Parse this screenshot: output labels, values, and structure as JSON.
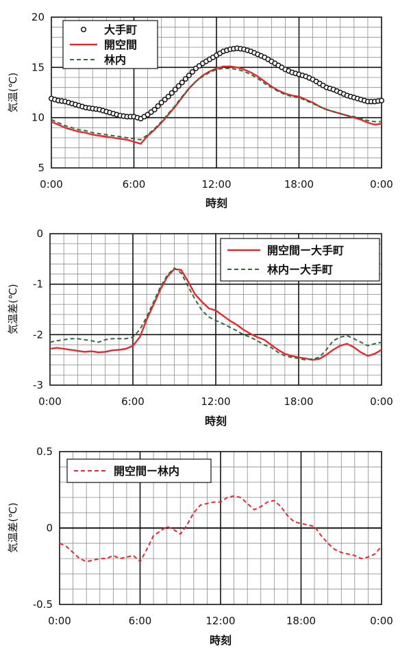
{
  "chart_data": [
    {
      "type": "line",
      "xlabel": "時刻",
      "ylabel": "気温(℃)",
      "xlim": [
        0,
        24
      ],
      "ylim": [
        5,
        20
      ],
      "x_ticks": [
        "0:00",
        "6:00",
        "12:00",
        "18:00",
        "0:00"
      ],
      "y_ticks": [
        "5",
        "10",
        "15",
        "20"
      ],
      "grid": true,
      "legend_position": "top-left",
      "series": [
        {
          "name": "大手町",
          "style": "circle-markers",
          "color": "#111111",
          "x": [
            0,
            0.5,
            1,
            1.5,
            2,
            2.5,
            3,
            3.5,
            4,
            4.5,
            5,
            5.5,
            6,
            6.5,
            7,
            7.5,
            8,
            8.5,
            9,
            9.5,
            10,
            10.5,
            11,
            11.5,
            12,
            12.5,
            13,
            13.5,
            14,
            14.5,
            15,
            15.5,
            16,
            16.5,
            17,
            17.5,
            18,
            18.5,
            19,
            19.5,
            20,
            20.5,
            21,
            21.5,
            22,
            22.5,
            23,
            23.5,
            24
          ],
          "y": [
            11.9,
            11.7,
            11.6,
            11.4,
            11.2,
            11,
            10.9,
            10.8,
            10.6,
            10.4,
            10.2,
            10.1,
            10.1,
            9.9,
            10.3,
            10.8,
            11.5,
            12.1,
            12.8,
            13.5,
            14.2,
            14.9,
            15.4,
            15.8,
            16.2,
            16.6,
            16.8,
            16.9,
            16.8,
            16.6,
            16.3,
            16,
            15.6,
            15.2,
            14.8,
            14.5,
            14.3,
            14.1,
            13.8,
            13.4,
            13,
            12.8,
            12.5,
            12.2,
            12,
            11.8,
            11.6,
            11.6,
            11.7
          ]
        },
        {
          "name": "開空間",
          "style": "solid",
          "color": "#e8262b",
          "x": [
            0,
            0.5,
            1,
            1.5,
            2,
            2.5,
            3,
            3.5,
            4,
            4.5,
            5,
            5.5,
            6,
            6.5,
            7,
            7.5,
            8,
            8.5,
            9,
            9.5,
            10,
            10.5,
            11,
            11.5,
            12,
            12.5,
            13,
            13.5,
            14,
            14.5,
            15,
            15.5,
            16,
            16.5,
            17,
            17.5,
            18,
            18.5,
            19,
            19.5,
            20,
            20.5,
            21,
            21.5,
            22,
            22.5,
            23,
            23.5,
            24
          ],
          "y": [
            9.6,
            9.3,
            9,
            8.8,
            8.6,
            8.5,
            8.3,
            8.2,
            8.1,
            8,
            7.9,
            7.8,
            7.6,
            7.4,
            8.2,
            8.8,
            9.5,
            10.3,
            11.1,
            12,
            12.9,
            13.6,
            14.2,
            14.6,
            14.9,
            15.1,
            15.1,
            15,
            14.8,
            14.5,
            14.1,
            13.6,
            13.1,
            12.7,
            12.4,
            12.2,
            12.1,
            11.8,
            11.5,
            11.1,
            10.8,
            10.6,
            10.4,
            10.2,
            10,
            9.8,
            9.5,
            9.3,
            9.4
          ]
        },
        {
          "name": "林内",
          "style": "dashed",
          "color": "#2e6b3c",
          "x": [
            0,
            0.5,
            1,
            1.5,
            2,
            2.5,
            3,
            3.5,
            4,
            4.5,
            5,
            5.5,
            6,
            6.5,
            7,
            7.5,
            8,
            8.5,
            9,
            9.5,
            10,
            10.5,
            11,
            11.5,
            12,
            12.5,
            13,
            13.5,
            14,
            14.5,
            15,
            15.5,
            16,
            16.5,
            17,
            17.5,
            18,
            18.5,
            19,
            19.5,
            20,
            20.5,
            21,
            21.5,
            22,
            22.5,
            23,
            23.5,
            24
          ],
          "y": [
            9.8,
            9.5,
            9.2,
            9,
            8.8,
            8.7,
            8.5,
            8.4,
            8.3,
            8.2,
            8.1,
            8,
            7.9,
            7.8,
            8.3,
            8.9,
            9.6,
            10.4,
            11.2,
            12.1,
            12.9,
            13.6,
            14.1,
            14.5,
            14.8,
            14.9,
            14.9,
            14.8,
            14.6,
            14.3,
            13.9,
            13.4,
            13,
            12.6,
            12.3,
            12.1,
            12,
            11.7,
            11.4,
            11.1,
            10.8,
            10.6,
            10.4,
            10.2,
            10.1,
            9.9,
            9.7,
            9.6,
            9.6
          ]
        }
      ]
    },
    {
      "type": "line",
      "xlabel": "時刻",
      "ylabel": "気温差(℃)",
      "xlim": [
        0,
        24
      ],
      "ylim": [
        -3,
        0
      ],
      "x_ticks": [
        "0:00",
        "6:00",
        "12:00",
        "18:00",
        "0:00"
      ],
      "y_ticks": [
        "-3",
        "-2",
        "-1",
        "0"
      ],
      "grid": true,
      "legend_position": "top-right",
      "series": [
        {
          "name": "開空間ー大手町",
          "style": "solid",
          "color": "#e8262b",
          "x": [
            0,
            0.5,
            1,
            1.5,
            2,
            2.5,
            3,
            3.5,
            4,
            4.5,
            5,
            5.5,
            6,
            6.5,
            7,
            7.5,
            8,
            8.5,
            9,
            9.5,
            10,
            10.5,
            11,
            11.5,
            12,
            12.5,
            13,
            13.5,
            14,
            14.5,
            15,
            15.5,
            16,
            16.5,
            17,
            17.5,
            18,
            18.5,
            19,
            19.5,
            20,
            20.5,
            21,
            21.5,
            22,
            22.5,
            23,
            23.5,
            24
          ],
          "y": [
            -2.28,
            -2.26,
            -2.28,
            -2.3,
            -2.32,
            -2.34,
            -2.33,
            -2.35,
            -2.34,
            -2.31,
            -2.3,
            -2.28,
            -2.22,
            -2.05,
            -1.7,
            -1.4,
            -1.1,
            -0.85,
            -0.7,
            -0.72,
            -0.95,
            -1.2,
            -1.35,
            -1.48,
            -1.52,
            -1.62,
            -1.72,
            -1.8,
            -1.9,
            -1.98,
            -2.05,
            -2.1,
            -2.2,
            -2.3,
            -2.38,
            -2.42,
            -2.45,
            -2.47,
            -2.5,
            -2.48,
            -2.4,
            -2.3,
            -2.22,
            -2.18,
            -2.25,
            -2.35,
            -2.42,
            -2.38,
            -2.3
          ]
        },
        {
          "name": "林内ー大手町",
          "style": "dashed",
          "color": "#2e6b3c",
          "x": [
            0,
            0.5,
            1,
            1.5,
            2,
            2.5,
            3,
            3.5,
            4,
            4.5,
            5,
            5.5,
            6,
            6.5,
            7,
            7.5,
            8,
            8.5,
            9,
            9.5,
            10,
            10.5,
            11,
            11.5,
            12,
            12.5,
            13,
            13.5,
            14,
            14.5,
            15,
            15.5,
            16,
            16.5,
            17,
            17.5,
            18,
            18.5,
            19,
            19.5,
            20,
            20.5,
            21,
            21.5,
            22,
            22.5,
            23,
            23.5,
            24
          ],
          "y": [
            -2.15,
            -2.12,
            -2.1,
            -2.08,
            -2.08,
            -2.1,
            -2.12,
            -2.15,
            -2.1,
            -2.08,
            -2.08,
            -2.08,
            -2.05,
            -1.9,
            -1.65,
            -1.35,
            -1.05,
            -0.82,
            -0.68,
            -0.78,
            -1.05,
            -1.3,
            -1.52,
            -1.65,
            -1.72,
            -1.78,
            -1.85,
            -1.92,
            -2,
            -2.05,
            -2.12,
            -2.2,
            -2.25,
            -2.35,
            -2.42,
            -2.45,
            -2.47,
            -2.5,
            -2.48,
            -2.45,
            -2.3,
            -2.12,
            -2.05,
            -2.02,
            -2.08,
            -2.15,
            -2.22,
            -2.18,
            -2.15
          ]
        }
      ]
    },
    {
      "type": "line",
      "xlabel": "時刻",
      "ylabel": "気温差(℃)",
      "xlim": [
        0,
        24
      ],
      "ylim": [
        -0.5,
        0.5
      ],
      "x_ticks": [
        "0:00",
        "6:00",
        "12:00",
        "18:00",
        "0:00"
      ],
      "y_ticks": [
        "-0.5",
        "0",
        "0.5"
      ],
      "grid": true,
      "legend_position": "top-left",
      "series": [
        {
          "name": "開空間ー林内",
          "style": "dashed",
          "color": "#e8262b",
          "x": [
            0,
            0.5,
            1,
            1.5,
            2,
            2.5,
            3,
            3.5,
            4,
            4.5,
            5,
            5.5,
            6,
            6.5,
            7,
            7.5,
            8,
            8.5,
            9,
            9.5,
            10,
            10.5,
            11,
            11.5,
            12,
            12.5,
            13,
            13.5,
            14,
            14.5,
            15,
            15.5,
            16,
            16.5,
            17,
            17.5,
            18,
            18.5,
            19,
            19.5,
            20,
            20.5,
            21,
            21.5,
            22,
            22.5,
            23,
            23.5,
            24
          ],
          "y": [
            -0.1,
            -0.12,
            -0.16,
            -0.2,
            -0.22,
            -0.21,
            -0.2,
            -0.2,
            -0.18,
            -0.2,
            -0.19,
            -0.18,
            -0.22,
            -0.14,
            -0.05,
            -0.02,
            0.01,
            -0.01,
            -0.04,
            0.02,
            0.1,
            0.15,
            0.16,
            0.17,
            0.17,
            0.2,
            0.21,
            0.2,
            0.16,
            0.12,
            0.14,
            0.17,
            0.18,
            0.14,
            0.08,
            0.04,
            0.03,
            0.02,
            0.01,
            -0.05,
            -0.1,
            -0.14,
            -0.16,
            -0.17,
            -0.18,
            -0.2,
            -0.19,
            -0.17,
            -0.12
          ]
        }
      ]
    }
  ]
}
